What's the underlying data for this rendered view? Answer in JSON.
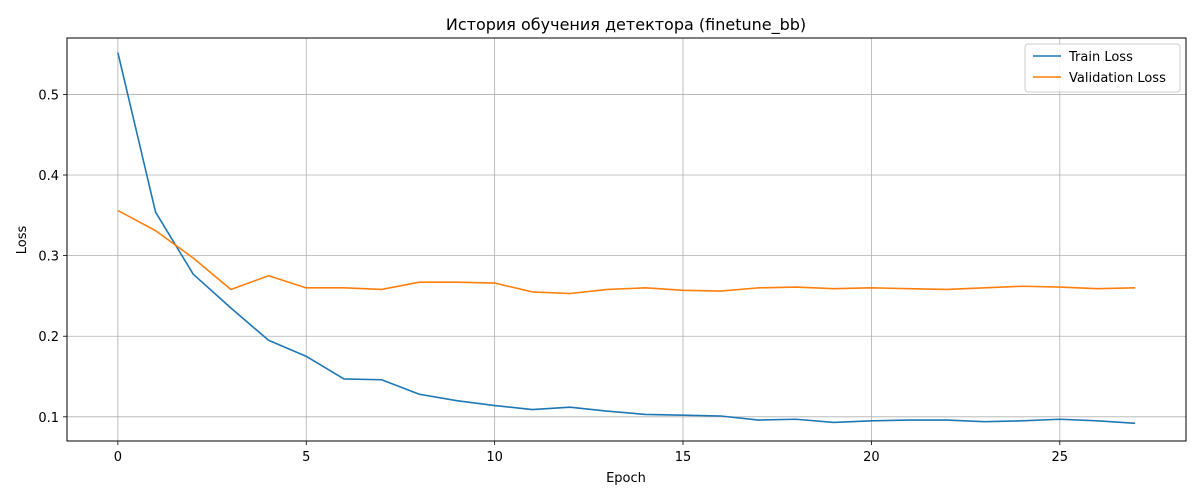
{
  "chart_data": {
    "type": "line",
    "title": "История обучения детектора (finetune_bb)",
    "xlabel": "Epoch",
    "ylabel": "Loss",
    "xlim": [
      -1.35,
      28.35
    ],
    "ylim": [
      0.07,
      0.57
    ],
    "x_ticks": [
      0,
      5,
      10,
      15,
      20,
      25
    ],
    "y_ticks": [
      0.1,
      0.2,
      0.3,
      0.4,
      0.5
    ],
    "grid": true,
    "legend_position": "top-right",
    "x": [
      0,
      1,
      2,
      3,
      4,
      5,
      6,
      7,
      8,
      9,
      10,
      11,
      12,
      13,
      14,
      15,
      16,
      17,
      18,
      19,
      20,
      21,
      22,
      23,
      24,
      25,
      26,
      27
    ],
    "series": [
      {
        "name": "Train Loss",
        "color": "#1f77b4",
        "values": [
          0.552,
          0.354,
          0.277,
          0.235,
          0.195,
          0.175,
          0.147,
          0.146,
          0.128,
          0.12,
          0.114,
          0.109,
          0.112,
          0.107,
          0.103,
          0.102,
          0.101,
          0.096,
          0.097,
          0.093,
          0.095,
          0.096,
          0.096,
          0.094,
          0.095,
          0.097,
          0.095,
          0.092
        ]
      },
      {
        "name": "Validation Loss",
        "color": "#ff7f0e",
        "values": [
          0.356,
          0.331,
          0.297,
          0.258,
          0.275,
          0.26,
          0.26,
          0.258,
          0.267,
          0.267,
          0.266,
          0.255,
          0.253,
          0.258,
          0.26,
          0.257,
          0.256,
          0.26,
          0.261,
          0.259,
          0.26,
          0.259,
          0.258,
          0.26,
          0.262,
          0.261,
          0.259,
          0.26
        ]
      }
    ]
  }
}
